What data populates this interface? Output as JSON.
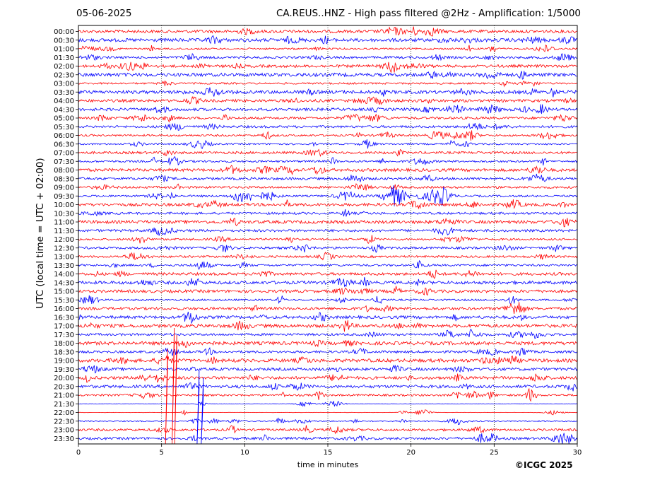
{
  "header": {
    "date": "05-06-2025",
    "title": "CA.REUS..HNZ - High pass filtered @2Hz - Amplification: 1/5000"
  },
  "footer": {
    "copyright": "©ICGC 2025"
  },
  "chart_data": {
    "type": "line",
    "title": "CA.REUS..HNZ - High pass filtered @2Hz - Amplification: 1/5000",
    "xlabel": "time in minutes",
    "ylabel": "UTC (local time = UTC + 02:00)",
    "xlim": [
      0,
      30
    ],
    "x_ticks": [
      "0",
      "5",
      "10",
      "15",
      "20",
      "25",
      "30"
    ],
    "grid": "vertical dotted lines at 5-minute intervals",
    "trace_colors": [
      "#ff0000",
      "#0000ff"
    ],
    "rows": [
      "00:00",
      "00:30",
      "01:00",
      "01:30",
      "02:00",
      "02:30",
      "03:00",
      "03:30",
      "04:00",
      "04:30",
      "05:00",
      "05:30",
      "06:00",
      "06:30",
      "07:00",
      "07:30",
      "08:00",
      "08:30",
      "09:00",
      "09:30",
      "10:00",
      "10:30",
      "11:00",
      "11:30",
      "12:00",
      "12:30",
      "13:00",
      "13:30",
      "14:00",
      "14:30",
      "15:00",
      "15:30",
      "16:00",
      "16:30",
      "17:00",
      "17:30",
      "18:00",
      "18:30",
      "19:00",
      "19:30",
      "20:00",
      "20:30",
      "21:00",
      "21:30",
      "22:00",
      "22:30",
      "23:00",
      "23:30"
    ],
    "events": [
      {
        "row": "09:30",
        "minute": 19.0,
        "description": "seismic event"
      },
      {
        "row": "09:30",
        "minute": 21.7,
        "description": "seismic event"
      }
    ]
  }
}
